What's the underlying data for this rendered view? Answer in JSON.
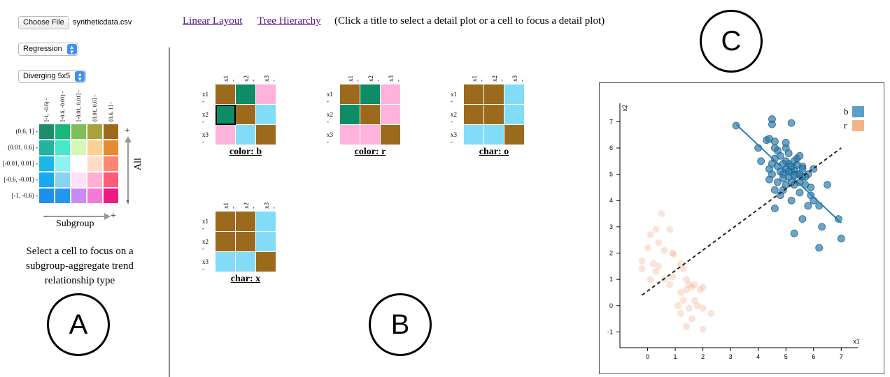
{
  "file": {
    "button_label": "Choose File",
    "file_name": "syntheticdata.csv"
  },
  "model_select": {
    "value": "Regression"
  },
  "palette_select": {
    "value": "Diverging 5x5"
  },
  "legend": {
    "col_labels": [
      "[-1, -0.6)",
      "[-0.6, -0.01)",
      "[-0.01, 0.01]",
      "(0.01, 0.6]",
      "(0.6, 1]"
    ],
    "row_labels": [
      "(0.6, 1]",
      "(0.01, 0.6]",
      "[-0.01, 0.01]",
      "[-0.6, -0.01)",
      "[-1, -0.6)"
    ],
    "x_axis_label": "Subgroup",
    "y_axis_label": "All",
    "plus": "+",
    "minus": "-",
    "colors": [
      [
        "#1c8c6c",
        "#18b878",
        "#7cc057",
        "#a6a33a",
        "#9b6a1d"
      ],
      [
        "#22b3a3",
        "#45e8c8",
        "#d5f7b7",
        "#fbd090",
        "#e98a33"
      ],
      [
        "#1ab8e6",
        "#8cf2f2",
        "#ffffff",
        "#ffdcc7",
        "#ff8670"
      ],
      [
        "#1aa8f0",
        "#86d3f2",
        "#ffe0f7",
        "#ffb0d0",
        "#ff5a7a"
      ],
      [
        "#1e8ff0",
        "#2196f3",
        "#c88af5",
        "#f57ad8",
        "#ee1a82"
      ]
    ]
  },
  "help_text": "Select a cell to focus on a subgroup-aggregate trend relationship type",
  "labels": {
    "a": "A",
    "b": "B",
    "c": "C"
  },
  "top_bar": {
    "link_linear": "Linear Layout",
    "link_tree": "Tree Hierarchy",
    "instruction": "(Click a title to select a detail plot or a cell to focus a detail plot)"
  },
  "matrices": [
    {
      "title": "color: b",
      "vars": [
        "x1",
        "x2",
        "x3"
      ],
      "cells": [
        [
          "#9b6a1d",
          "#0d8c66",
          "#ffb3dc"
        ],
        [
          "#0d8c66",
          "#9b6a1d",
          "#82dcf7"
        ],
        [
          "#ffb3dc",
          "#82dcf7",
          "#9b6a1d"
        ]
      ],
      "selected": [
        1,
        0
      ]
    },
    {
      "title": "color: r",
      "vars": [
        "x1",
        "x2",
        "x3"
      ],
      "cells": [
        [
          "#9b6a1d",
          "#0d8c66",
          "#ffb3dc"
        ],
        [
          "#0d8c66",
          "#9b6a1d",
          "#ffb3dc"
        ],
        [
          "#ffb3dc",
          "#ffb3dc",
          "#9b6a1d"
        ]
      ],
      "selected": null
    },
    {
      "title": "char: o",
      "vars": [
        "x1",
        "x2",
        "x3"
      ],
      "cells": [
        [
          "#9b6a1d",
          "#9b6a1d",
          "#82dcf7"
        ],
        [
          "#9b6a1d",
          "#9b6a1d",
          "#82dcf7"
        ],
        [
          "#82dcf7",
          "#82dcf7",
          "#9b6a1d"
        ]
      ],
      "selected": null
    },
    {
      "title": "char: x",
      "vars": [
        "x1",
        "x2",
        "x3"
      ],
      "cells": [
        [
          "#9b6a1d",
          "#9b6a1d",
          "#82dcf7"
        ],
        [
          "#9b6a1d",
          "#9b6a1d",
          "#82dcf7"
        ],
        [
          "#82dcf7",
          "#82dcf7",
          "#9b6a1d"
        ]
      ],
      "selected": null
    }
  ],
  "chart_data": {
    "type": "scatter",
    "xlabel": "x1",
    "ylabel": "x2",
    "xlim": [
      -1,
      7.6
    ],
    "ylim": [
      -1.6,
      7.7
    ],
    "xticks": [
      0,
      1,
      2,
      3,
      4,
      5,
      6,
      7
    ],
    "yticks": [
      -1,
      0,
      1,
      2,
      3,
      4,
      5,
      6,
      7
    ],
    "legend": [
      {
        "name": "b",
        "color": "#5aa0c8"
      },
      {
        "name": "r",
        "color": "#f5b38a"
      }
    ],
    "series": [
      {
        "name": "b",
        "color": "#2a7fb0",
        "opacity": 0.7,
        "points": [
          [
            3.2,
            6.85
          ],
          [
            4.5,
            7.1
          ],
          [
            4.5,
            6.9
          ],
          [
            5.2,
            6.95
          ],
          [
            4.0,
            6.0
          ],
          [
            4.3,
            6.3
          ],
          [
            4.4,
            6.35
          ],
          [
            4.6,
            6.25
          ],
          [
            4.8,
            5.7
          ],
          [
            5.0,
            6.0
          ],
          [
            4.7,
            5.9
          ],
          [
            5.1,
            5.8
          ],
          [
            5.4,
            5.6
          ],
          [
            5.5,
            5.7
          ],
          [
            4.4,
            5.2
          ],
          [
            4.5,
            5.0
          ],
          [
            4.7,
            5.3
          ],
          [
            4.8,
            5.1
          ],
          [
            4.9,
            5.0
          ],
          [
            5.0,
            5.2
          ],
          [
            5.1,
            4.9
          ],
          [
            5.2,
            5.1
          ],
          [
            5.3,
            5.2
          ],
          [
            5.4,
            5.0
          ],
          [
            5.6,
            5.3
          ],
          [
            5.8,
            5.0
          ],
          [
            5.6,
            4.9
          ],
          [
            5.7,
            4.6
          ],
          [
            5.9,
            4.5
          ],
          [
            5.3,
            4.6
          ],
          [
            4.9,
            4.4
          ],
          [
            4.6,
            4.4
          ],
          [
            4.4,
            4.8
          ],
          [
            5.0,
            4.6
          ],
          [
            5.5,
            4.3
          ],
          [
            5.2,
            4.0
          ],
          [
            4.8,
            4.2
          ],
          [
            6.0,
            4.0
          ],
          [
            6.2,
            3.8
          ],
          [
            6.5,
            4.6
          ],
          [
            6.9,
            3.3
          ],
          [
            5.8,
            3.8
          ],
          [
            4.6,
            3.7
          ],
          [
            5.6,
            3.3
          ],
          [
            5.3,
            2.75
          ],
          [
            6.3,
            3.0
          ],
          [
            6.2,
            2.2
          ],
          [
            7.0,
            2.55
          ],
          [
            5.1,
            5.4
          ],
          [
            5.5,
            5.0
          ],
          [
            5.0,
            5.5
          ],
          [
            4.9,
            5.4
          ],
          [
            5.2,
            5.3
          ],
          [
            5.3,
            5.5
          ],
          [
            4.6,
            6.0
          ],
          [
            4.7,
            4.7
          ],
          [
            5.5,
            4.7
          ],
          [
            5.7,
            4.9
          ],
          [
            6.0,
            5.2
          ],
          [
            5.1,
            5.1
          ],
          [
            5.3,
            4.95
          ],
          [
            4.9,
            4.85
          ],
          [
            5.6,
            5.2
          ],
          [
            5.2,
            4.7
          ],
          [
            4.6,
            5.6
          ],
          [
            4.5,
            5.4
          ],
          [
            5.0,
            6.2
          ],
          [
            4.1,
            5.5
          ],
          [
            5.9,
            4.2
          ],
          [
            5.4,
            5.35
          ]
        ]
      },
      {
        "name": "r",
        "color": "#f0b090",
        "opacity": 0.35,
        "points": [
          [
            0.5,
            3.5
          ],
          [
            0.3,
            2.9
          ],
          [
            0.1,
            2.7
          ],
          [
            0.0,
            2.2
          ],
          [
            0.4,
            2.4
          ],
          [
            0.8,
            2.9
          ],
          [
            0.9,
            2.0
          ],
          [
            0.6,
            2.1
          ],
          [
            -0.2,
            1.7
          ],
          [
            0.2,
            1.6
          ],
          [
            0.4,
            1.5
          ],
          [
            0.3,
            1.3
          ],
          [
            -0.2,
            1.4
          ],
          [
            0.1,
            1.0
          ],
          [
            0.6,
            1.0
          ],
          [
            0.8,
            0.8
          ],
          [
            0.9,
            1.1
          ],
          [
            1.2,
            1.6
          ],
          [
            1.3,
            1.4
          ],
          [
            1.4,
            1.0
          ],
          [
            1.5,
            0.8
          ],
          [
            1.6,
            0.7
          ],
          [
            1.2,
            0.5
          ],
          [
            1.3,
            0.2
          ],
          [
            1.1,
            0.0
          ],
          [
            1.2,
            -0.3
          ],
          [
            1.4,
            0.6
          ],
          [
            1.7,
            0.2
          ],
          [
            1.8,
            0.0
          ],
          [
            2.0,
            -0.1
          ],
          [
            1.9,
            0.6
          ],
          [
            1.7,
            0.8
          ],
          [
            2.0,
            0.7
          ],
          [
            1.4,
            -0.8
          ],
          [
            2.3,
            -0.3
          ],
          [
            2.0,
            -0.9
          ],
          [
            1.6,
            -0.5
          ],
          [
            1.5,
            -0.1
          ],
          [
            0.95,
            1.95
          ]
        ]
      }
    ],
    "lines": [
      {
        "name": "b-fit",
        "style": "solid",
        "color": "#2a7fb0",
        "from": [
          3.2,
          6.9
        ],
        "to": [
          7.0,
          3.15
        ]
      },
      {
        "name": "aggregate-fit",
        "style": "dashed",
        "color": "#222222",
        "from": [
          -0.2,
          0.4
        ],
        "to": [
          7.0,
          6.0
        ]
      }
    ]
  }
}
